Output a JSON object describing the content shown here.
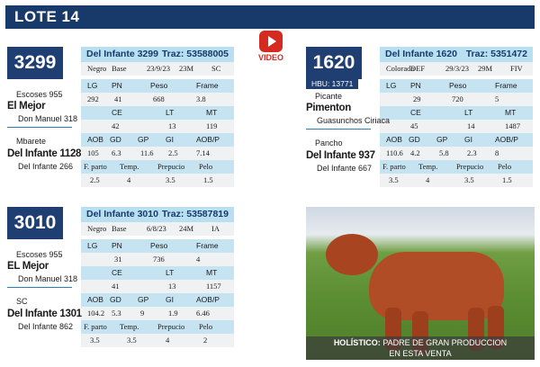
{
  "header": {
    "title": "LOTE 14"
  },
  "video": {
    "label": "VIDEO"
  },
  "cards": [
    {
      "number": "3299",
      "name": "Del Infante 3299",
      "traz": "Traz: 53588005",
      "hbu": "",
      "info": [
        "Negro",
        "Base",
        "23/9/23",
        "23M",
        "SC"
      ],
      "h1": [
        "LG",
        "PN",
        "Peso",
        "Frame"
      ],
      "v1": [
        "292",
        "41",
        "668",
        "3.8"
      ],
      "h2": [
        "CE",
        "LT",
        "MT"
      ],
      "v2": [
        "42",
        "13",
        "119"
      ],
      "h3": [
        "AOB",
        "GD",
        "GP",
        "GI",
        "AOB/P"
      ],
      "v3": [
        "105",
        "6.3",
        "11.6",
        "2.5",
        "7.14"
      ],
      "h4": [
        "F. parto",
        "Temp.",
        "Prepucio",
        "Pelo"
      ],
      "v4": [
        "2.5",
        "4",
        "3.5",
        "1.5"
      ],
      "sire": {
        "sire": "Escoses 955",
        "name": "El Mejor",
        "dam": "Don Manuel 318"
      },
      "dam": {
        "sire": "Mbarete",
        "name": "Del Infante 1128",
        "dam": "Del Infante 266"
      }
    },
    {
      "number": "1620",
      "name": "Del Infante 1620",
      "traz": "Traz: 5351472",
      "hbu": "HBU: 13771",
      "info": [
        "Colorado",
        "DEF",
        "29/3/23",
        "29M",
        "FIV"
      ],
      "h1": [
        "LG",
        "PN",
        "Peso",
        "Frame"
      ],
      "v1": [
        "",
        "29",
        "720",
        "5"
      ],
      "h2": [
        "CE",
        "LT",
        "MT"
      ],
      "v2": [
        "45",
        "14",
        "1487"
      ],
      "h3": [
        "AOB",
        "GD",
        "GP",
        "GI",
        "AOB/P"
      ],
      "v3": [
        "110.6",
        "4.2",
        "5.8",
        "2.3",
        "8"
      ],
      "h4": [
        "F. parto",
        "Temp.",
        "Prepucio",
        "Pelo"
      ],
      "v4": [
        "3.5",
        "4",
        "3.5",
        "1.5"
      ],
      "sire": {
        "sire": "Picante",
        "name": "Pimenton",
        "dam": "Guasunchos Ciriaca"
      },
      "dam": {
        "sire": "Pancho",
        "name": "Del Infante 937",
        "dam": "Del Infante 667"
      }
    },
    {
      "number": "3010",
      "name": "Del Infante 3010",
      "traz": "Traz: 53587819",
      "hbu": "",
      "info": [
        "Negro",
        "Base",
        "6/8/23",
        "24M",
        "IA"
      ],
      "h1": [
        "LG",
        "PN",
        "Peso",
        "Frame"
      ],
      "v1": [
        "",
        "31",
        "736",
        "4"
      ],
      "h2": [
        "CE",
        "LT",
        "MT"
      ],
      "v2": [
        "41",
        "13",
        "1157"
      ],
      "h3": [
        "AOB",
        "GD",
        "GP",
        "GI",
        "AOB/P"
      ],
      "v3": [
        "104.2",
        "5.3",
        "9",
        "1.9",
        "6.46"
      ],
      "h4": [
        "F. parto",
        "Temp.",
        "Prepucio",
        "Pelo"
      ],
      "v4": [
        "3.5",
        "3.5",
        "4",
        "2"
      ],
      "sire": {
        "sire": "Escoses 955",
        "name": "EL Mejor",
        "dam": "Don Manuel 318"
      },
      "dam": {
        "sire": "SC",
        "name": "Del Infante 1301",
        "dam": "Del Infante 862"
      }
    }
  ],
  "photo": {
    "caption_bold": "HOLÍSTICO:",
    "caption_rest": "PADRE DE GRAN PRODUCCION",
    "caption_line2": "EN ESTA VENTA"
  }
}
